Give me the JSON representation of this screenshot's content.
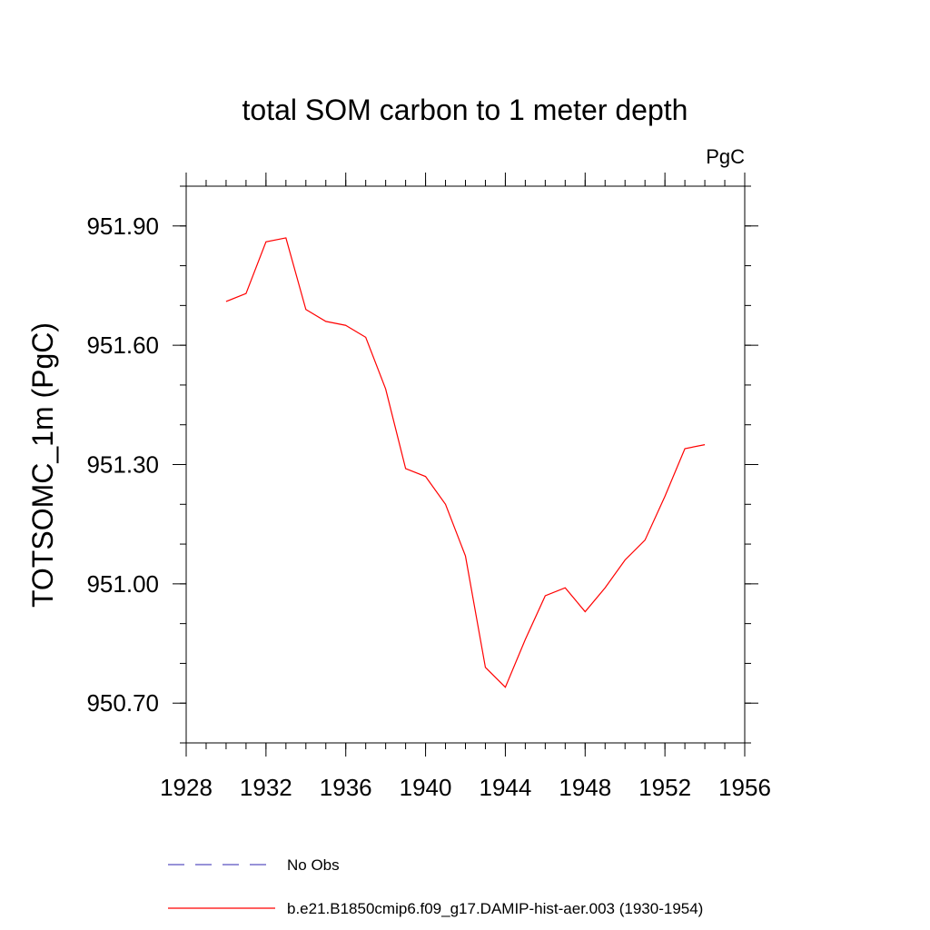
{
  "chart_data": {
    "type": "line",
    "title": "total SOM carbon to 1 meter depth",
    "units_label": "PgC",
    "ylabel": "TOTSOMC_1m  (PgC)",
    "xlabel": "",
    "xlim": [
      1928,
      1956
    ],
    "ylim": [
      950.6,
      952.0
    ],
    "x_ticks": [
      1928,
      1932,
      1936,
      1940,
      1944,
      1948,
      1952,
      1956
    ],
    "x_tick_labels": [
      "1928",
      "1932",
      "1936",
      "1940",
      "1944",
      "1948",
      "1952",
      "1956"
    ],
    "x_minor_step": 1,
    "y_ticks": [
      950.7,
      951.0,
      951.3,
      951.6,
      951.9
    ],
    "y_tick_labels": [
      "950.70",
      "951.00",
      "951.30",
      "951.60",
      "951.90"
    ],
    "y_minor_step": 0.1,
    "grid": false,
    "legend_position": "bottom",
    "series": [
      {
        "name": "No Obs",
        "color": "#5a50c0",
        "dash": "dashed",
        "x": [],
        "values": []
      },
      {
        "name": "b.e21.B1850cmip6.f09_g17.DAMIP-hist-aer.003 (1930-1954)",
        "color": "#ff0000",
        "dash": "solid",
        "x": [
          1930,
          1931,
          1932,
          1933,
          1934,
          1935,
          1936,
          1937,
          1938,
          1939,
          1940,
          1941,
          1942,
          1943,
          1944,
          1945,
          1946,
          1947,
          1948,
          1949,
          1950,
          1951,
          1952,
          1953,
          1954
        ],
        "values": [
          951.71,
          951.73,
          951.86,
          951.87,
          951.69,
          951.66,
          951.65,
          951.62,
          951.49,
          951.29,
          951.27,
          951.2,
          951.07,
          950.79,
          950.74,
          950.86,
          950.97,
          950.99,
          950.93,
          950.99,
          951.06,
          951.11,
          951.22,
          951.34,
          951.35
        ]
      }
    ]
  }
}
